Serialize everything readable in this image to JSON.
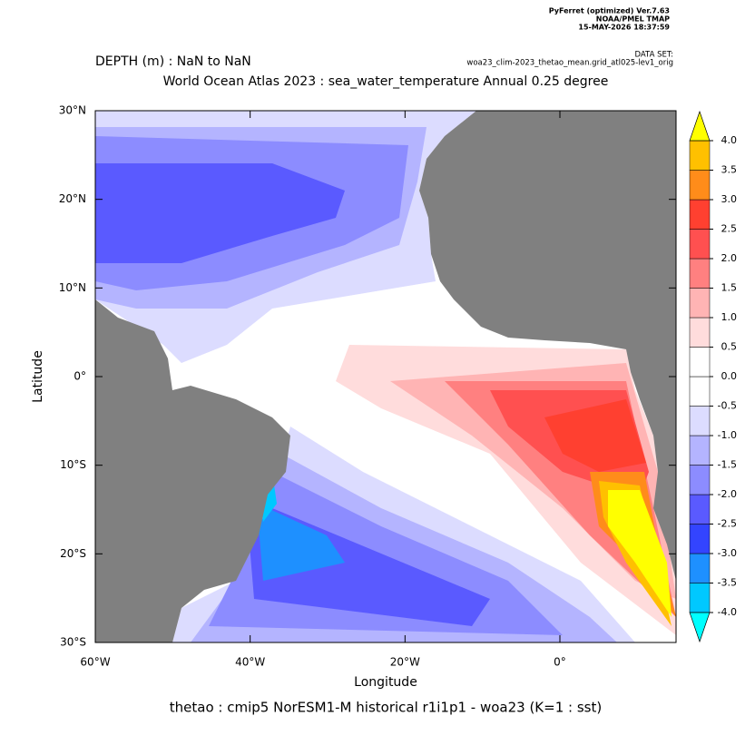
{
  "chart_data": {
    "type": "contour-map",
    "header": [
      "PyFerret (optimized) Ver.7.63",
      "NOAA/PMEL TMAP",
      "15-MAY-2026 18:37:59"
    ],
    "dataset_label": "DATA SET:",
    "dataset": "woa23_clim-2023_thetao_mean.grid_atl025-lev1_orig",
    "subtitle": "DEPTH (m) : NaN to NaN",
    "title": "World Ocean Atlas 2023 : sea_water_temperature Annual  0.25 degree",
    "xlabel": "Longitude",
    "ylabel": "Latitude",
    "footer": "thetao : cmip5 NorESM1-M historical r1i1p1 - woa23  (K=1 : sst)",
    "xlim": [
      -60,
      15
    ],
    "ylim": [
      -30,
      30
    ],
    "xticks": [
      {
        "value": -60,
        "label": "60°W"
      },
      {
        "value": -40,
        "label": "40°W"
      },
      {
        "value": -20,
        "label": "20°W"
      },
      {
        "value": 0,
        "label": "0°"
      }
    ],
    "yticks": [
      {
        "value": 30,
        "label": "30°N"
      },
      {
        "value": 20,
        "label": "20°N"
      },
      {
        "value": 10,
        "label": "10°N"
      },
      {
        "value": 0,
        "label": "0°"
      },
      {
        "value": -10,
        "label": "10°S"
      },
      {
        "value": -20,
        "label": "20°S"
      },
      {
        "value": -30,
        "label": "30°S"
      }
    ],
    "land_color": "#808080",
    "colorbar": {
      "levels": [
        {
          "value": -4,
          "label": "-4.0"
        },
        {
          "value": -3.5,
          "label": "-3.5"
        },
        {
          "value": -3,
          "label": "-3.0"
        },
        {
          "value": -2.5,
          "label": "-2.5"
        },
        {
          "value": -2,
          "label": "-2.0"
        },
        {
          "value": -1.5,
          "label": "-1.5"
        },
        {
          "value": -1,
          "label": "-1.0"
        },
        {
          "value": -0.5,
          "label": "-0.5"
        },
        {
          "value": 0,
          "label": "0.0"
        },
        {
          "value": 0.5,
          "label": "0.5"
        },
        {
          "value": 1,
          "label": "1.0"
        },
        {
          "value": 1.5,
          "label": "1.5"
        },
        {
          "value": 2,
          "label": "2.0"
        },
        {
          "value": 2.5,
          "label": "2.5"
        },
        {
          "value": 3,
          "label": "3.0"
        },
        {
          "value": 3.5,
          "label": "3.5"
        },
        {
          "value": 4,
          "label": "4.0"
        }
      ],
      "colors": [
        "#00c8ff",
        "#1e90ff",
        "#3344ff",
        "#5a5aff",
        "#8c8cff",
        "#b4b4ff",
        "#dcdcff",
        "#ffffff",
        "#ffffff",
        "#ffdcdc",
        "#ffb4b4",
        "#ff8080",
        "#ff5050",
        "#ff4030",
        "#ff8c1a",
        "#ffc000"
      ],
      "under_color": "#00ffff",
      "over_color": "#ffff00"
    }
  }
}
